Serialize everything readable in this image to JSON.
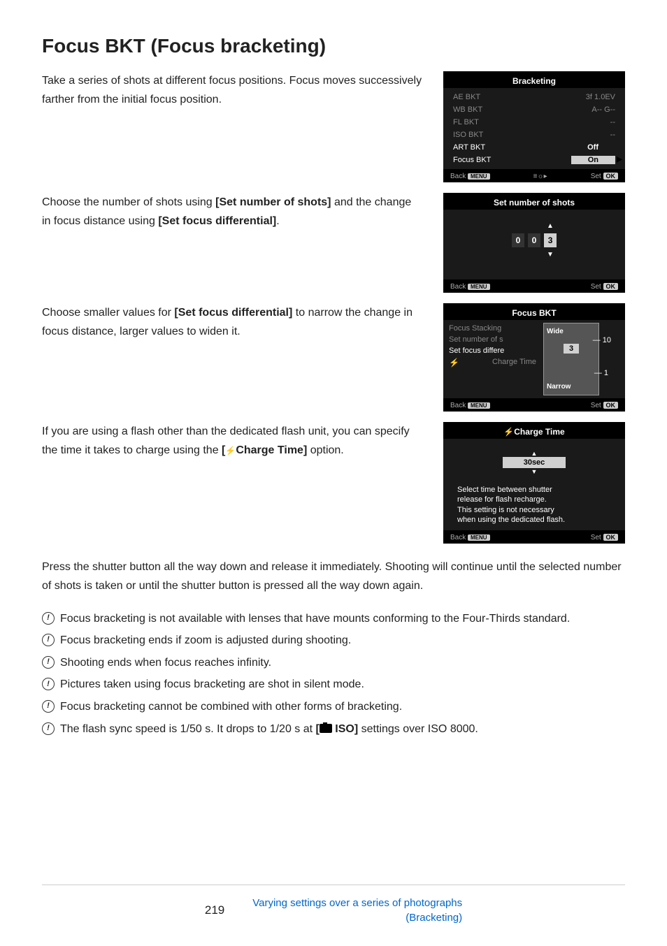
{
  "title": "Focus BKT (Focus bracketing)",
  "intro": "Take a series of shots at different focus positions. Focus moves successively farther from the initial focus position.",
  "screen1": {
    "header": "Bracketing",
    "rows": [
      {
        "label": "AE BKT",
        "value": "3f 1.0EV"
      },
      {
        "label": "WB BKT",
        "value": "A-- G--"
      },
      {
        "label": "FL BKT",
        "value": "--"
      },
      {
        "label": "ISO BKT",
        "value": "--"
      },
      {
        "label": "ART BKT",
        "value": "Off"
      },
      {
        "label": "Focus BKT",
        "value": "On"
      }
    ],
    "back": "Back",
    "set": "Set"
  },
  "para2_a": "Choose the number of shots using ",
  "para2_b": "[Set number of shots]",
  "para2_c": " and the change in focus distance using ",
  "para2_d": "[Set focus differential]",
  "para2_e": ".",
  "screen2": {
    "header": "Set number of shots",
    "digits": [
      "0",
      "0",
      "3"
    ],
    "back": "Back",
    "set": "Set"
  },
  "para3_a": "Choose smaller values for ",
  "para3_b": "[Set focus differential]",
  "para3_c": " to narrow the change in focus distance, larger values to widen it.",
  "screen3": {
    "header": "Focus BKT",
    "items": [
      "Focus Stacking",
      "Set number of s",
      "Set focus differe",
      "Charge Time"
    ],
    "wide": "Wide",
    "narrow": "Narrow",
    "val10": "10",
    "val1": "1",
    "current": "3",
    "back": "Back",
    "set": "Set"
  },
  "para4_a": "If you are using a flash other than the dedicated flash unit, you can specify the time it takes to charge using the ",
  "para4_b": "Charge Time]",
  "para4_c": " option.",
  "screen4": {
    "header": "Charge Time",
    "value": "30sec",
    "desc1": "Select time between shutter",
    "desc2": "release for flash recharge.",
    "desc3": "This setting is not necessary",
    "desc4": "when using the dedicated flash.",
    "back": "Back",
    "set": "Set"
  },
  "para5": "Press the shutter button all the way down and release it immediately. Shooting will continue until the selected number of shots is taken or until the shutter button is pressed all the way down again.",
  "notes": [
    "Focus bracketing is not available with lenses that have mounts conforming to the Four-Thirds standard.",
    "Focus bracketing ends if zoom is adjusted during shooting.",
    "Shooting ends when focus reaches infinity.",
    "Pictures taken using focus bracketing are shot in silent mode.",
    "Focus bracketing cannot be combined with other forms of bracketing."
  ],
  "note6_a": "The flash sync speed is 1/50 s. It drops to 1/20 s at ",
  "note6_b": " ISO]",
  "note6_c": " settings over ISO 8000.",
  "pageNum": "219",
  "footerLink1": "Varying settings over a series of photographs",
  "footerLink2": "(Bracketing)",
  "menuBadge": "MENU",
  "okBadge": "OK"
}
